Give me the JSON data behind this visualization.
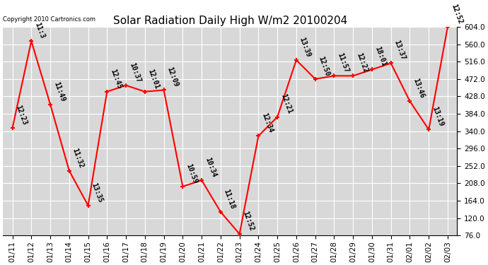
{
  "title": "Solar Radiation Daily High W/m2 20100204",
  "copyright": "Copyright 2010 Cartronics.com",
  "dates": [
    "01/11",
    "01/12",
    "01/13",
    "01/14",
    "01/15",
    "01/16",
    "01/17",
    "01/18",
    "01/19",
    "01/20",
    "01/21",
    "01/22",
    "01/23",
    "01/24",
    "01/25",
    "01/26",
    "01/27",
    "01/28",
    "01/29",
    "01/30",
    "01/31",
    "02/01",
    "02/02",
    "02/03"
  ],
  "values": [
    348,
    568,
    408,
    240,
    152,
    440,
    456,
    440,
    444,
    200,
    216,
    136,
    80,
    328,
    376,
    520,
    472,
    480,
    480,
    496,
    512,
    416,
    344,
    604
  ],
  "labels": [
    "12:23",
    "11:3",
    "11:49",
    "11:32",
    "13:35",
    "12:45",
    "10:37",
    "12:01",
    "12:09",
    "10:59",
    "10:34",
    "11:18",
    "12:52",
    "12:34",
    "12:21",
    "13:39",
    "12:50",
    "11:57",
    "12:22",
    "18:01",
    "13:37",
    "13:46",
    "13:19",
    "12:52"
  ],
  "ylim": [
    76.0,
    604.0
  ],
  "yticks": [
    76.0,
    120.0,
    164.0,
    208.0,
    252.0,
    296.0,
    340.0,
    384.0,
    428.0,
    472.0,
    516.0,
    560.0,
    604.0
  ],
  "line_color": "red",
  "marker_color": "red",
  "bg_color": "#ffffff",
  "plot_bg": "#d8d8d8",
  "grid_color": "#ffffff",
  "title_fontsize": 11,
  "label_fontsize": 7,
  "tick_fontsize": 7.5
}
